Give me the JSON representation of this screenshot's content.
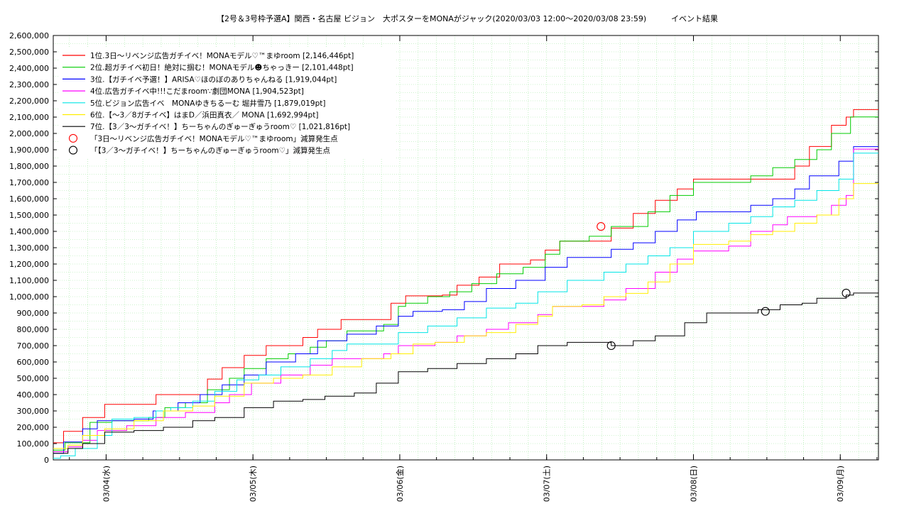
{
  "chart_data": {
    "type": "line",
    "title": "【2号＆3号枠予選A】関西・名古屋 ビジョン　大ポスターをMONAがジャック(2020/03/03 12:00〜2020/03/08 23:59)",
    "subtitle": "イベント結果",
    "xlabel": "",
    "ylabel": "",
    "ylim": [
      0,
      2600000
    ],
    "xlim": [
      0,
      5.62
    ],
    "x_unit": "days since 03/03 00:00",
    "grid": true,
    "legend_position": "top-left",
    "y_ticks": [
      "0",
      "100,000",
      "200,000",
      "300,000",
      "400,000",
      "500,000",
      "600,000",
      "700,000",
      "800,000",
      "900,000",
      "1,000,000",
      "1,100,000",
      "1,200,000",
      "1,300,000",
      "1,400,000",
      "1,500,000",
      "1,600,000",
      "1,700,000",
      "1,800,000",
      "1,900,000",
      "2,000,000",
      "2,100,000",
      "2,200,000",
      "2,300,000",
      "2,400,000",
      "2,500,000",
      "2,600,000"
    ],
    "x_ticks": [
      {
        "x": 0.36,
        "label": "03/04(水)"
      },
      {
        "x": 1.36,
        "label": "03/05(木)"
      },
      {
        "x": 2.36,
        "label": "03/06(金)"
      },
      {
        "x": 3.36,
        "label": "03/07(土)"
      },
      {
        "x": 4.36,
        "label": "03/08(日)"
      },
      {
        "x": 5.36,
        "label": "03/09(月)"
      }
    ],
    "series": [
      {
        "name": "1位.3日〜リベンジ広告ガチイベ！MONAモデル♡™まゆroom [2,146,446pt]",
        "color": "#ff0000",
        "points": [
          [
            0,
            105000
          ],
          [
            0.07,
            175000
          ],
          [
            0.2,
            260000
          ],
          [
            0.35,
            340000
          ],
          [
            0.7,
            400000
          ],
          [
            0.99,
            400000
          ],
          [
            1.05,
            495000
          ],
          [
            1.15,
            565000
          ],
          [
            1.3,
            640000
          ],
          [
            1.45,
            700000
          ],
          [
            1.7,
            750000
          ],
          [
            1.8,
            800000
          ],
          [
            1.96,
            860000
          ],
          [
            2.2,
            860000
          ],
          [
            2.3,
            960000
          ],
          [
            2.4,
            1005000
          ],
          [
            2.65,
            1010000
          ],
          [
            2.75,
            1070000
          ],
          [
            2.9,
            1120000
          ],
          [
            3.04,
            1200000
          ],
          [
            3.25,
            1225000
          ],
          [
            3.35,
            1285000
          ],
          [
            3.45,
            1340000
          ],
          [
            3.7,
            1340000
          ],
          [
            3.8,
            1420000
          ],
          [
            3.95,
            1510000
          ],
          [
            4.1,
            1590000
          ],
          [
            4.25,
            1660000
          ],
          [
            4.36,
            1720000
          ],
          [
            4.65,
            1720000
          ],
          [
            4.9,
            1720000
          ],
          [
            5.05,
            1800000
          ],
          [
            5.15,
            1920000
          ],
          [
            5.3,
            2050000
          ],
          [
            5.4,
            2100000
          ],
          [
            5.45,
            2146000
          ],
          [
            5.62,
            2146000
          ]
        ]
      },
      {
        "name": "2位.超ガチイベ初日！絶対に掴む！MONAモデル☻ちゃっきー [2,101,448pt]",
        "color": "#00cc00",
        "points": [
          [
            0,
            60000
          ],
          [
            0.08,
            105000
          ],
          [
            0.25,
            230000
          ],
          [
            0.4,
            240000
          ],
          [
            0.65,
            260000
          ],
          [
            0.76,
            320000
          ],
          [
            0.9,
            350000
          ],
          [
            1.05,
            430000
          ],
          [
            1.2,
            500000
          ],
          [
            1.3,
            560000
          ],
          [
            1.45,
            620000
          ],
          [
            1.6,
            650000
          ],
          [
            1.75,
            690000
          ],
          [
            1.86,
            730000
          ],
          [
            2.0,
            790000
          ],
          [
            2.25,
            830000
          ],
          [
            2.35,
            940000
          ],
          [
            2.4,
            960000
          ],
          [
            2.55,
            1000000
          ],
          [
            2.7,
            1030000
          ],
          [
            2.85,
            1080000
          ],
          [
            3.02,
            1140000
          ],
          [
            3.2,
            1180000
          ],
          [
            3.35,
            1260000
          ],
          [
            3.45,
            1340000
          ],
          [
            3.65,
            1370000
          ],
          [
            3.8,
            1430000
          ],
          [
            4.05,
            1520000
          ],
          [
            4.2,
            1620000
          ],
          [
            4.36,
            1700000
          ],
          [
            4.6,
            1700000
          ],
          [
            4.75,
            1740000
          ],
          [
            4.9,
            1790000
          ],
          [
            5.05,
            1840000
          ],
          [
            5.2,
            1900000
          ],
          [
            5.3,
            2000000
          ],
          [
            5.43,
            2101000
          ],
          [
            5.62,
            2101000
          ]
        ]
      },
      {
        "name": "3位.【ガチイベ予選！】ARISA♡ほのぼのありちゃんねる [1,919,044pt]",
        "color": "#0000ff",
        "points": [
          [
            0,
            40000
          ],
          [
            0.07,
            110000
          ],
          [
            0.2,
            190000
          ],
          [
            0.3,
            240000
          ],
          [
            0.55,
            250000
          ],
          [
            0.68,
            300000
          ],
          [
            0.85,
            350000
          ],
          [
            1.0,
            400000
          ],
          [
            1.15,
            460000
          ],
          [
            1.3,
            520000
          ],
          [
            1.45,
            600000
          ],
          [
            1.65,
            650000
          ],
          [
            1.8,
            730000
          ],
          [
            2.0,
            770000
          ],
          [
            2.2,
            820000
          ],
          [
            2.35,
            880000
          ],
          [
            2.45,
            910000
          ],
          [
            2.65,
            920000
          ],
          [
            2.8,
            970000
          ],
          [
            2.95,
            1050000
          ],
          [
            3.15,
            1100000
          ],
          [
            3.35,
            1180000
          ],
          [
            3.5,
            1240000
          ],
          [
            3.8,
            1290000
          ],
          [
            3.95,
            1330000
          ],
          [
            4.1,
            1400000
          ],
          [
            4.25,
            1470000
          ],
          [
            4.38,
            1520000
          ],
          [
            4.6,
            1520000
          ],
          [
            4.75,
            1560000
          ],
          [
            4.9,
            1600000
          ],
          [
            5.05,
            1660000
          ],
          [
            5.15,
            1740000
          ],
          [
            5.35,
            1830000
          ],
          [
            5.45,
            1919000
          ],
          [
            5.62,
            1919000
          ]
        ]
      },
      {
        "name": "4位.広告ガチイベ中!!!こだまroom∵劇団MONA [1,904,523pt]",
        "color": "#ff00ff",
        "points": [
          [
            0,
            50000
          ],
          [
            0.1,
            80000
          ],
          [
            0.2,
            120000
          ],
          [
            0.3,
            180000
          ],
          [
            0.5,
            210000
          ],
          [
            0.7,
            260000
          ],
          [
            0.9,
            290000
          ],
          [
            1.1,
            350000
          ],
          [
            1.2,
            400000
          ],
          [
            1.35,
            470000
          ],
          [
            1.55,
            520000
          ],
          [
            1.75,
            580000
          ],
          [
            1.9,
            620000
          ],
          [
            2.1,
            620000
          ],
          [
            2.25,
            650000
          ],
          [
            2.35,
            700000
          ],
          [
            2.6,
            720000
          ],
          [
            2.75,
            760000
          ],
          [
            2.95,
            800000
          ],
          [
            3.1,
            840000
          ],
          [
            3.3,
            890000
          ],
          [
            3.4,
            940000
          ],
          [
            3.6,
            940000
          ],
          [
            3.75,
            980000
          ],
          [
            3.9,
            1050000
          ],
          [
            4.1,
            1150000
          ],
          [
            4.25,
            1230000
          ],
          [
            4.36,
            1280000
          ],
          [
            4.6,
            1310000
          ],
          [
            4.75,
            1400000
          ],
          [
            4.9,
            1440000
          ],
          [
            5.0,
            1490000
          ],
          [
            5.2,
            1500000
          ],
          [
            5.3,
            1560000
          ],
          [
            5.4,
            1620000
          ],
          [
            5.45,
            1904000
          ],
          [
            5.62,
            1904000
          ]
        ]
      },
      {
        "name": "5位.ビジョン広告イベ　MONAゆきちるーむ 堀井雪乃 [1,879,019pt]",
        "color": "#00e5e5",
        "points": [
          [
            0,
            10000
          ],
          [
            0.05,
            25000
          ],
          [
            0.15,
            70000
          ],
          [
            0.3,
            150000
          ],
          [
            0.4,
            250000
          ],
          [
            0.55,
            260000
          ],
          [
            0.7,
            300000
          ],
          [
            0.8,
            320000
          ],
          [
            0.95,
            360000
          ],
          [
            1.1,
            420000
          ],
          [
            1.25,
            490000
          ],
          [
            1.4,
            520000
          ],
          [
            1.55,
            570000
          ],
          [
            1.75,
            620000
          ],
          [
            1.9,
            670000
          ],
          [
            2.0,
            710000
          ],
          [
            2.2,
            710000
          ],
          [
            2.35,
            780000
          ],
          [
            2.55,
            820000
          ],
          [
            2.75,
            870000
          ],
          [
            2.95,
            930000
          ],
          [
            3.15,
            960000
          ],
          [
            3.3,
            1030000
          ],
          [
            3.5,
            1100000
          ],
          [
            3.75,
            1150000
          ],
          [
            3.9,
            1200000
          ],
          [
            4.05,
            1250000
          ],
          [
            4.2,
            1300000
          ],
          [
            4.36,
            1400000
          ],
          [
            4.6,
            1450000
          ],
          [
            4.75,
            1490000
          ],
          [
            4.9,
            1550000
          ],
          [
            5.05,
            1590000
          ],
          [
            5.2,
            1650000
          ],
          [
            5.35,
            1720000
          ],
          [
            5.45,
            1879000
          ],
          [
            5.62,
            1879000
          ]
        ]
      },
      {
        "name": "6位.【〜3／8ガチイベ】はまD／浜田真衣／ MONA [1,692,994pt]",
        "color": "#ffee00",
        "points": [
          [
            0,
            70000
          ],
          [
            0.1,
            90000
          ],
          [
            0.2,
            150000
          ],
          [
            0.35,
            190000
          ],
          [
            0.55,
            240000
          ],
          [
            0.75,
            300000
          ],
          [
            0.95,
            330000
          ],
          [
            1.1,
            390000
          ],
          [
            1.3,
            470000
          ],
          [
            1.5,
            500000
          ],
          [
            1.7,
            520000
          ],
          [
            1.9,
            570000
          ],
          [
            2.1,
            620000
          ],
          [
            2.3,
            650000
          ],
          [
            2.45,
            710000
          ],
          [
            2.6,
            720000
          ],
          [
            2.8,
            760000
          ],
          [
            2.95,
            780000
          ],
          [
            3.15,
            830000
          ],
          [
            3.3,
            880000
          ],
          [
            3.4,
            940000
          ],
          [
            3.6,
            950000
          ],
          [
            3.75,
            1000000
          ],
          [
            3.9,
            1020000
          ],
          [
            4.05,
            1090000
          ],
          [
            4.2,
            1200000
          ],
          [
            4.36,
            1320000
          ],
          [
            4.6,
            1340000
          ],
          [
            4.75,
            1380000
          ],
          [
            4.9,
            1400000
          ],
          [
            5.05,
            1450000
          ],
          [
            5.2,
            1500000
          ],
          [
            5.35,
            1600000
          ],
          [
            5.45,
            1693000
          ],
          [
            5.62,
            1693000
          ]
        ]
      },
      {
        "name": "7位.【3／3〜ガチイベ！】ちーちゃんのぎゅーぎゅうroom♡ [1,021,816pt]",
        "color": "#000000",
        "points": [
          [
            0,
            40000
          ],
          [
            0.1,
            70000
          ],
          [
            0.2,
            100000
          ],
          [
            0.35,
            170000
          ],
          [
            0.55,
            180000
          ],
          [
            0.75,
            200000
          ],
          [
            0.95,
            240000
          ],
          [
            1.1,
            260000
          ],
          [
            1.3,
            320000
          ],
          [
            1.5,
            360000
          ],
          [
            1.7,
            370000
          ],
          [
            1.85,
            390000
          ],
          [
            2.05,
            410000
          ],
          [
            2.2,
            470000
          ],
          [
            2.35,
            540000
          ],
          [
            2.55,
            560000
          ],
          [
            2.75,
            590000
          ],
          [
            2.95,
            620000
          ],
          [
            3.15,
            650000
          ],
          [
            3.3,
            700000
          ],
          [
            3.5,
            720000
          ],
          [
            3.7,
            720000
          ],
          [
            3.8,
            700000
          ],
          [
            3.95,
            730000
          ],
          [
            4.1,
            760000
          ],
          [
            4.3,
            840000
          ],
          [
            4.45,
            900000
          ],
          [
            4.7,
            900000
          ],
          [
            4.8,
            920000
          ],
          [
            4.95,
            950000
          ],
          [
            5.1,
            960000
          ],
          [
            5.2,
            990000
          ],
          [
            5.4,
            1010000
          ],
          [
            5.45,
            1022000
          ],
          [
            5.62,
            1022000
          ]
        ]
      }
    ],
    "markers": [
      {
        "name": "「3日〜リベンジ広告ガチイベ！MONAモデル♡™まゆroom」減算発生点",
        "color": "#ff0000",
        "points": [
          [
            3.73,
            1430000
          ]
        ]
      },
      {
        "name": "「【3／3〜ガチイベ！】ちーちゃんのぎゅーぎゅうroom♡」減算発生点",
        "color": "#000000",
        "points": [
          [
            3.8,
            700000
          ],
          [
            4.85,
            910000
          ],
          [
            5.4,
            1022000
          ]
        ]
      }
    ]
  }
}
